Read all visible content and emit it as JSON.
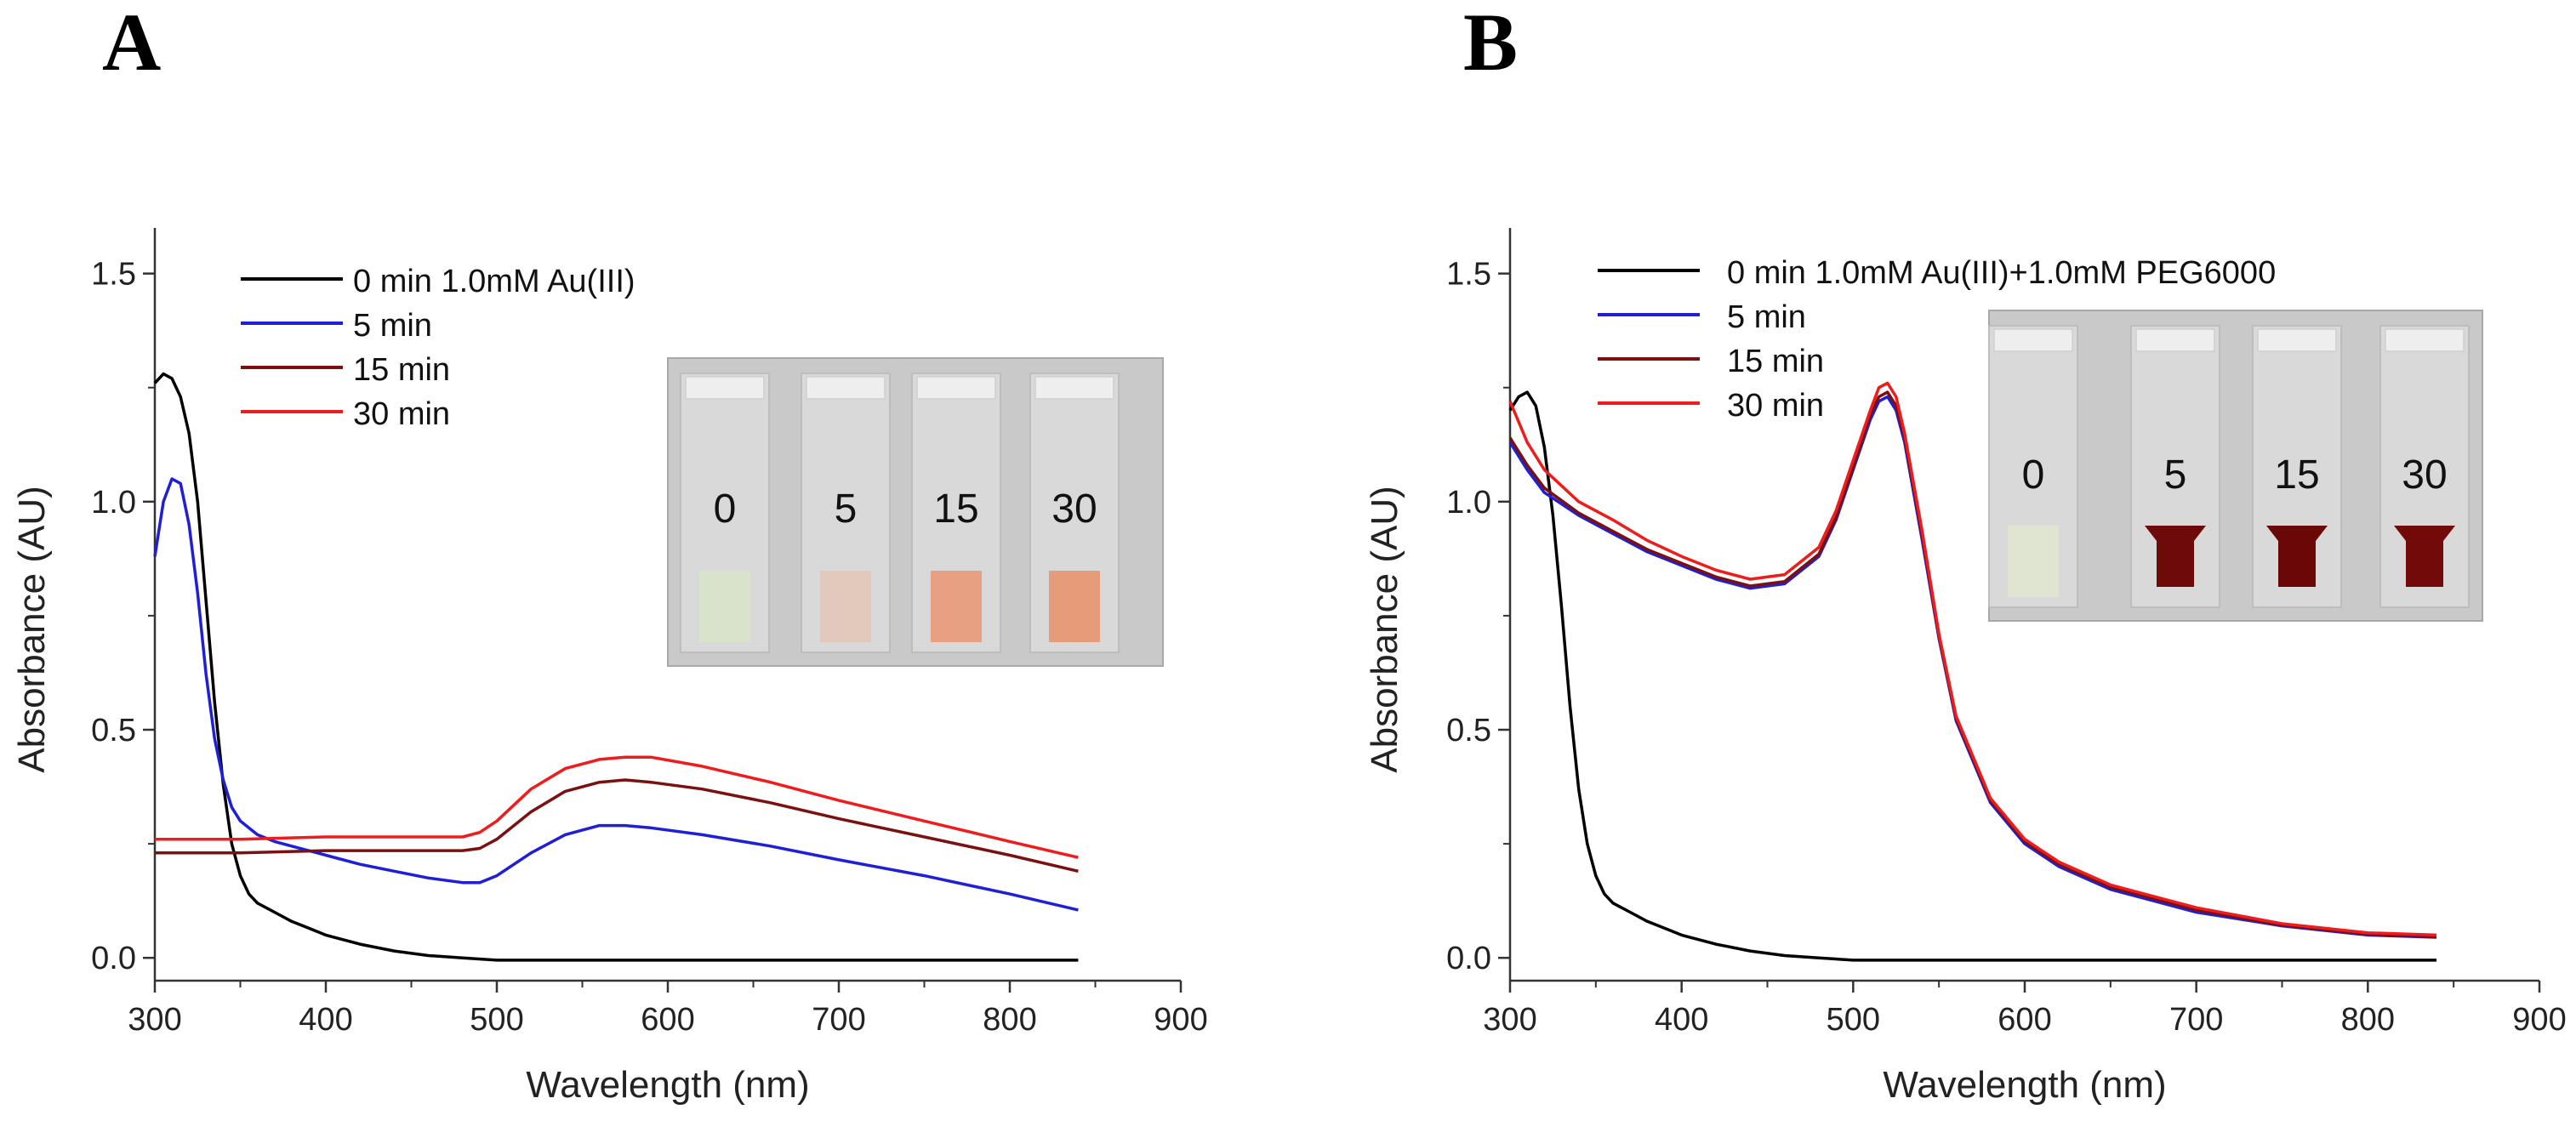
{
  "chart_data": [
    {
      "type": "line",
      "panel_label": "A",
      "xlabel": "Wavelength (nm)",
      "ylabel": "Absorbance (AU)",
      "xlim": [
        300,
        900
      ],
      "ylim": [
        -0.05,
        1.6
      ],
      "xticks": [
        "300",
        "400",
        "500",
        "600",
        "700",
        "800",
        "900"
      ],
      "yticks": [
        "0.0",
        "0.5",
        "1.0",
        "1.5"
      ],
      "grid": false,
      "legend_position": "top-left",
      "legend": [
        "0 min 1.0mM Au(III)",
        " 5 min",
        "15 min",
        "30 min"
      ],
      "series": [
        {
          "name": "0 min 1.0mM Au(III)",
          "color": "#000000",
          "x": [
            300,
            305,
            310,
            315,
            320,
            325,
            330,
            335,
            340,
            345,
            350,
            355,
            360,
            370,
            380,
            390,
            400,
            420,
            440,
            460,
            480,
            500,
            550,
            600,
            650,
            700,
            750,
            800,
            840
          ],
          "y": [
            1.26,
            1.28,
            1.27,
            1.23,
            1.15,
            1.0,
            0.78,
            0.56,
            0.38,
            0.25,
            0.18,
            0.14,
            0.12,
            0.1,
            0.08,
            0.065,
            0.05,
            0.03,
            0.015,
            0.005,
            0.0,
            -0.005,
            -0.005,
            -0.005,
            -0.005,
            -0.005,
            -0.005,
            -0.005,
            -0.005
          ]
        },
        {
          "name": "5 min",
          "color": "#1f1fd6",
          "x": [
            300,
            305,
            310,
            315,
            320,
            325,
            330,
            335,
            340,
            345,
            350,
            360,
            370,
            380,
            400,
            420,
            440,
            460,
            480,
            490,
            500,
            520,
            540,
            560,
            575,
            590,
            620,
            660,
            700,
            750,
            800,
            840
          ],
          "y": [
            0.88,
            1.0,
            1.05,
            1.04,
            0.95,
            0.8,
            0.62,
            0.48,
            0.39,
            0.33,
            0.3,
            0.27,
            0.255,
            0.245,
            0.225,
            0.205,
            0.19,
            0.175,
            0.165,
            0.165,
            0.18,
            0.23,
            0.27,
            0.29,
            0.29,
            0.285,
            0.27,
            0.245,
            0.215,
            0.18,
            0.14,
            0.105
          ]
        },
        {
          "name": "15 min",
          "color": "#7a1010",
          "x": [
            300,
            350,
            400,
            450,
            480,
            490,
            500,
            520,
            540,
            560,
            575,
            590,
            620,
            660,
            700,
            750,
            800,
            840
          ],
          "y": [
            0.23,
            0.23,
            0.235,
            0.235,
            0.235,
            0.24,
            0.26,
            0.32,
            0.365,
            0.385,
            0.39,
            0.385,
            0.37,
            0.34,
            0.305,
            0.265,
            0.225,
            0.19
          ]
        },
        {
          "name": "30 min",
          "color": "#ee1c1c",
          "x": [
            300,
            350,
            400,
            450,
            480,
            490,
            500,
            520,
            540,
            560,
            575,
            590,
            620,
            660,
            700,
            750,
            800,
            840
          ],
          "y": [
            0.26,
            0.26,
            0.265,
            0.265,
            0.265,
            0.275,
            0.3,
            0.37,
            0.415,
            0.435,
            0.44,
            0.44,
            0.42,
            0.385,
            0.345,
            0.3,
            0.255,
            0.22
          ]
        }
      ],
      "inset": {
        "labels": [
          "0",
          "5",
          "15",
          "30"
        ],
        "liquid_colors": [
          "#d8e2c8",
          "#e2c7b8",
          "#e89a78",
          "#e8956e"
        ]
      }
    },
    {
      "type": "line",
      "panel_label": "B",
      "xlabel": "Wavelength (nm)",
      "ylabel": "Absorbance (AU)",
      "xlim": [
        300,
        900
      ],
      "ylim": [
        -0.05,
        1.6
      ],
      "xticks": [
        "300",
        "400",
        "500",
        "600",
        "700",
        "800",
        "900"
      ],
      "yticks": [
        "0.0",
        "0.5",
        "1.0",
        "1.5"
      ],
      "grid": false,
      "legend_position": "top-left",
      "legend": [
        "0 min 1.0mM Au(III)+1.0mM PEG6000",
        " 5 min",
        "15 min",
        "30 min"
      ],
      "series": [
        {
          "name": "0 min 1.0mM Au(III)+1.0mM PEG6000",
          "color": "#000000",
          "x": [
            300,
            305,
            310,
            315,
            320,
            325,
            330,
            335,
            340,
            345,
            350,
            355,
            360,
            370,
            380,
            390,
            400,
            420,
            440,
            460,
            480,
            500,
            550,
            600,
            650,
            700,
            750,
            800,
            840
          ],
          "y": [
            1.2,
            1.23,
            1.24,
            1.21,
            1.12,
            0.97,
            0.77,
            0.55,
            0.37,
            0.25,
            0.18,
            0.14,
            0.12,
            0.1,
            0.08,
            0.065,
            0.05,
            0.03,
            0.015,
            0.005,
            0.0,
            -0.005,
            -0.005,
            -0.005,
            -0.005,
            -0.005,
            -0.005,
            -0.005,
            -0.005
          ]
        },
        {
          "name": "5 min",
          "color": "#1f1fd6",
          "x": [
            300,
            310,
            320,
            340,
            360,
            380,
            400,
            420,
            440,
            460,
            480,
            490,
            500,
            510,
            515,
            520,
            525,
            530,
            540,
            550,
            560,
            580,
            600,
            620,
            650,
            700,
            750,
            800,
            840
          ],
          "y": [
            1.13,
            1.07,
            1.02,
            0.97,
            0.93,
            0.89,
            0.86,
            0.83,
            0.81,
            0.82,
            0.88,
            0.96,
            1.07,
            1.18,
            1.22,
            1.23,
            1.2,
            1.13,
            0.92,
            0.7,
            0.52,
            0.34,
            0.25,
            0.2,
            0.15,
            0.1,
            0.07,
            0.05,
            0.045
          ]
        },
        {
          "name": "15 min",
          "color": "#7a1010",
          "x": [
            300,
            310,
            320,
            340,
            360,
            380,
            400,
            420,
            440,
            460,
            480,
            490,
            500,
            510,
            515,
            520,
            525,
            530,
            540,
            550,
            560,
            580,
            600,
            620,
            650,
            700,
            750,
            800,
            840
          ],
          "y": [
            1.14,
            1.08,
            1.03,
            0.975,
            0.935,
            0.895,
            0.865,
            0.835,
            0.815,
            0.825,
            0.885,
            0.965,
            1.075,
            1.19,
            1.23,
            1.24,
            1.21,
            1.14,
            0.93,
            0.705,
            0.525,
            0.345,
            0.255,
            0.205,
            0.155,
            0.105,
            0.072,
            0.052,
            0.046
          ]
        },
        {
          "name": "30 min",
          "color": "#ee1c1c",
          "x": [
            300,
            310,
            320,
            340,
            360,
            380,
            400,
            420,
            440,
            460,
            480,
            490,
            500,
            510,
            515,
            520,
            525,
            530,
            540,
            550,
            560,
            580,
            600,
            620,
            650,
            700,
            750,
            800,
            840
          ],
          "y": [
            1.22,
            1.13,
            1.07,
            1.0,
            0.96,
            0.915,
            0.88,
            0.85,
            0.83,
            0.84,
            0.9,
            0.98,
            1.09,
            1.2,
            1.25,
            1.26,
            1.23,
            1.15,
            0.94,
            0.71,
            0.53,
            0.35,
            0.26,
            0.21,
            0.16,
            0.11,
            0.075,
            0.055,
            0.05
          ]
        }
      ],
      "inset": {
        "labels": [
          "0",
          "5",
          "15",
          "30"
        ],
        "liquid_colors": [
          "#dfe6cf",
          "#6e0a0a",
          "#6a0808",
          "#720a0a"
        ]
      }
    }
  ]
}
